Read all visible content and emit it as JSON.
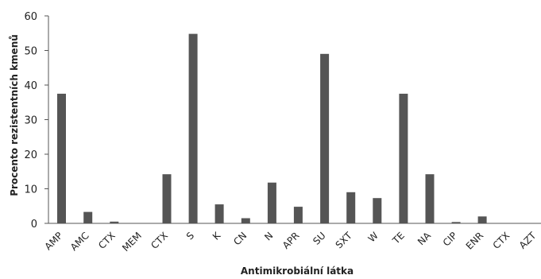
{
  "chart_data": {
    "type": "bar",
    "xlabel": "Antimikrobiální látka",
    "ylabel": "Procento rezistentních kmenů",
    "ylim": [
      0,
      60
    ],
    "yticks": [
      "0",
      "10",
      "20",
      "30",
      "40",
      "50",
      "60"
    ],
    "grid": false,
    "categories": [
      "AMP",
      "AMC",
      "CTX",
      "MEM",
      "CTX",
      "S",
      "K",
      "CN",
      "N",
      "APR",
      "SU",
      "SXT",
      "W",
      "TE",
      "NA",
      "CIP",
      "ENR",
      "CTX",
      "AZT"
    ],
    "values": [
      37.5,
      3.3,
      0.5,
      0,
      14.2,
      54.8,
      5.5,
      1.5,
      11.8,
      4.8,
      49,
      9,
      7.3,
      37.5,
      14.2,
      0.4,
      2,
      0,
      0
    ],
    "bar_color": "#555555",
    "axis_color": "#555555"
  }
}
